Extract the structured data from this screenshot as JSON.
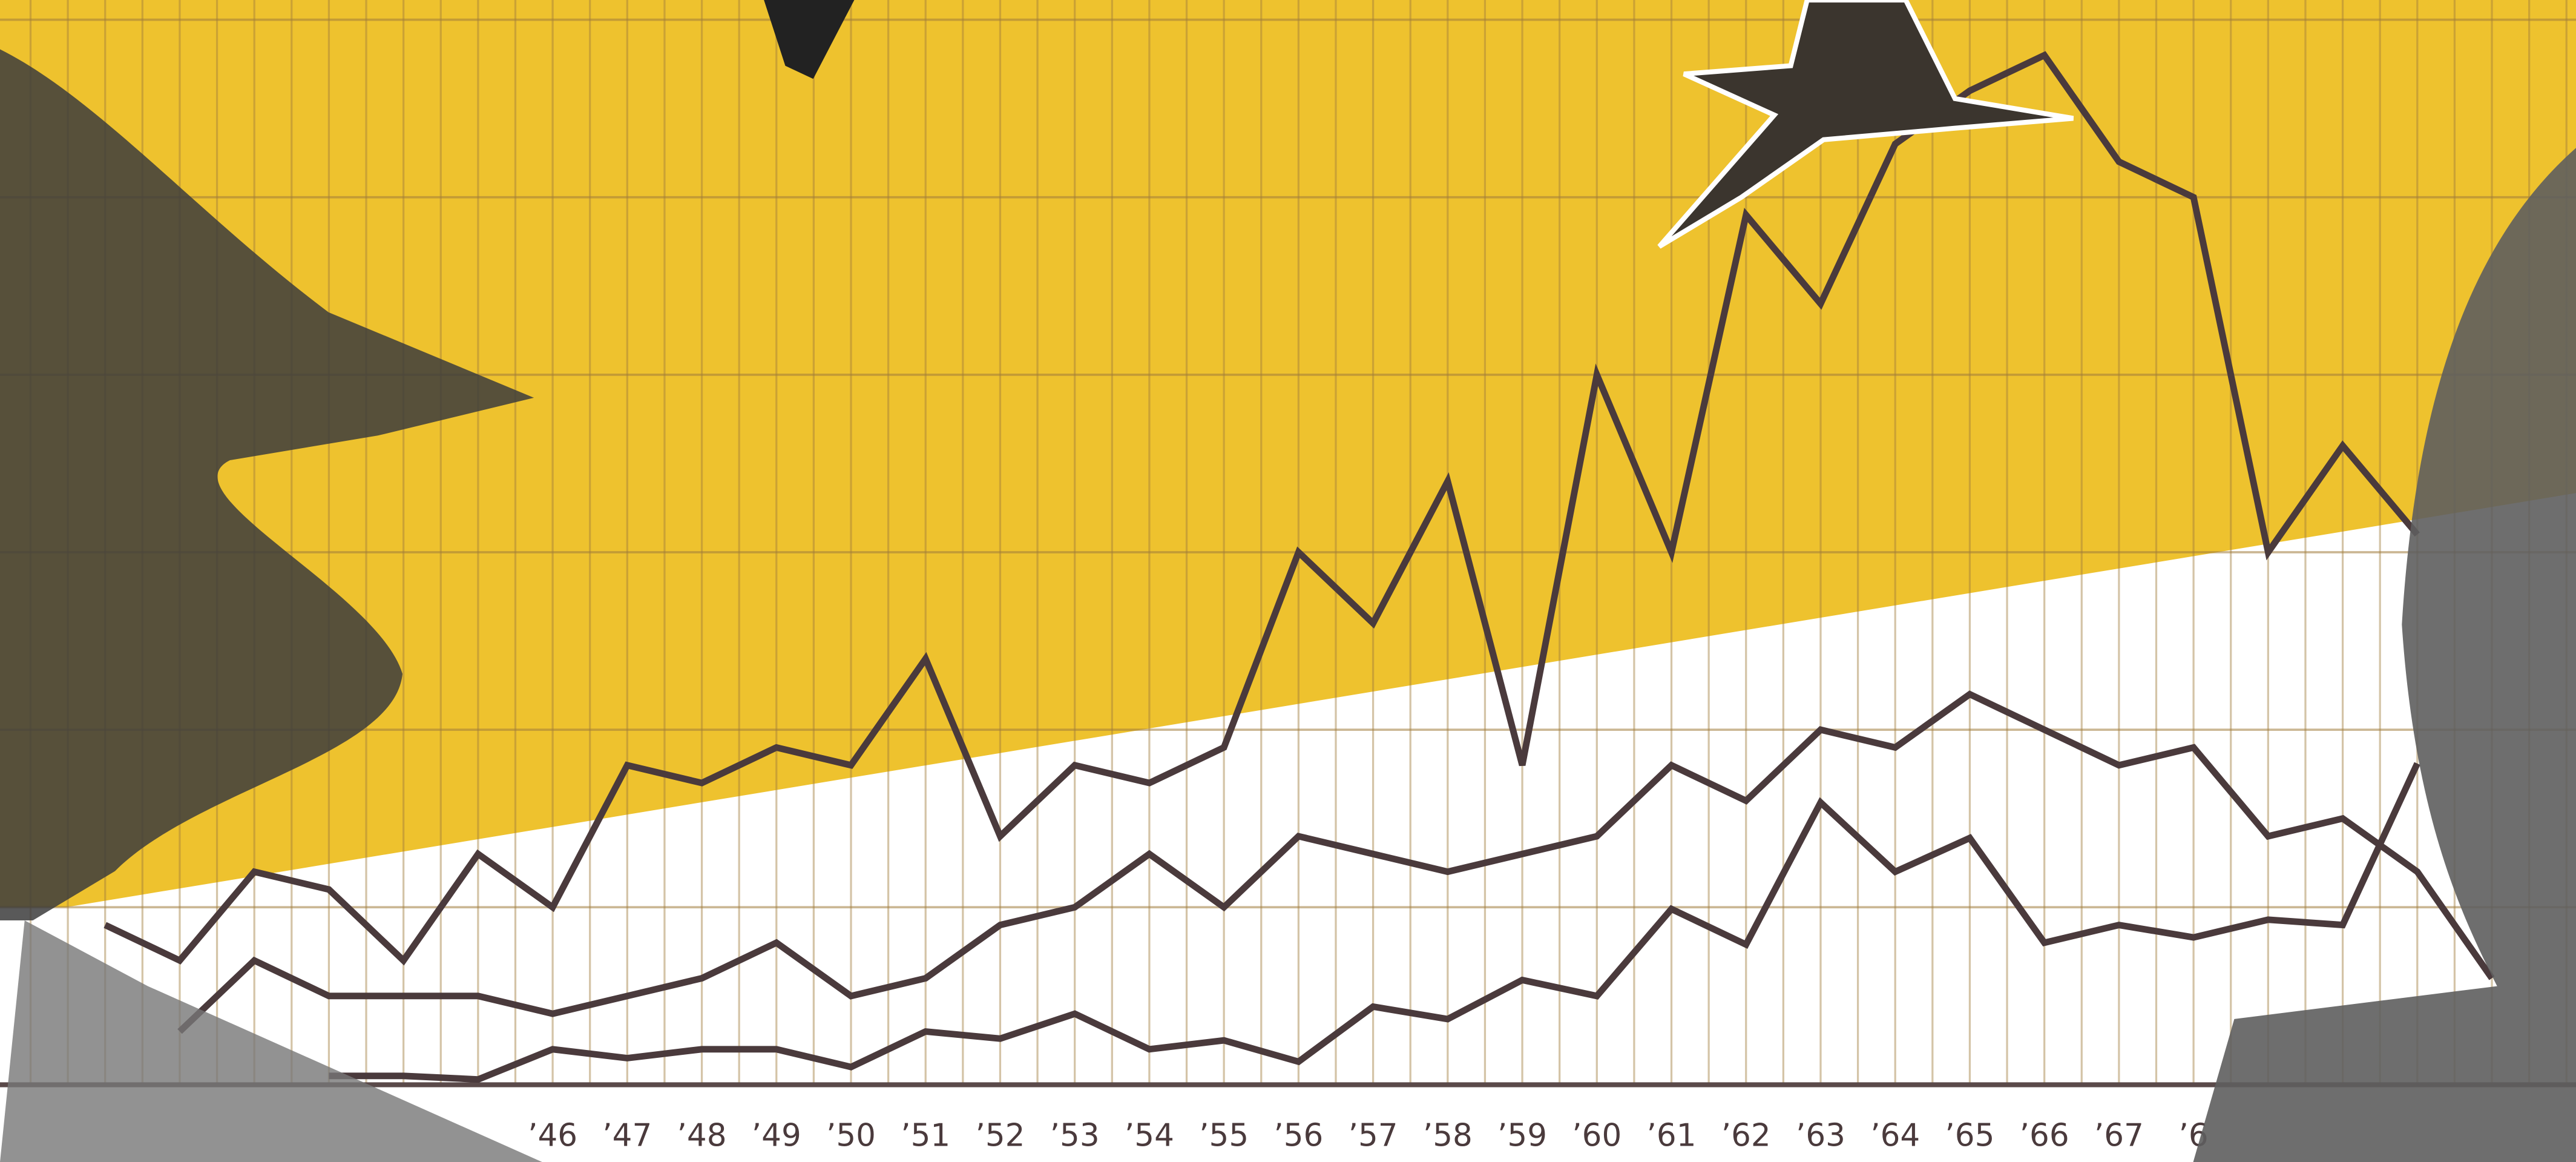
{
  "chart_data": {
    "type": "line",
    "categories": [
      null,
      null,
      null,
      null,
      null,
      null,
      "’46",
      "’47",
      "’48",
      "’49",
      "’50",
      "’51",
      "’52",
      "’53",
      "’54",
      "’55",
      "’56",
      "’57",
      "’58",
      "’59",
      "’60",
      "’61",
      "’62",
      "’63",
      "’64",
      "’65",
      "’66",
      "’67",
      "’6",
      null,
      null,
      null,
      null
    ],
    "series": [
      {
        "color": "#4a3a3c",
        "values": [
          0.9,
          0.7,
          1.2,
          1.1,
          0.7,
          1.3,
          1.0,
          1.8,
          1.7,
          1.9,
          1.8,
          2.4,
          1.4,
          1.8,
          1.7,
          1.9,
          3.0,
          2.6,
          3.4,
          1.8,
          4.0,
          3.0,
          4.9,
          4.4,
          5.3,
          5.6,
          5.8,
          5.2,
          5.0,
          3.0,
          3.6,
          3.1,
          null
        ]
      },
      {
        "color": "#4a3a3c",
        "values": [
          null,
          0.3,
          0.7,
          0.5,
          0.5,
          0.5,
          0.4,
          0.5,
          0.6,
          0.8,
          0.5,
          0.6,
          0.9,
          1.0,
          1.3,
          1.0,
          1.4,
          1.3,
          1.2,
          1.3,
          1.4,
          1.8,
          1.6,
          2.0,
          1.9,
          2.2,
          2.0,
          1.8,
          1.9,
          1.4,
          1.5,
          1.2,
          0.6
        ]
      },
      {
        "color": "#4a3a3c",
        "values": [
          null,
          null,
          null,
          0.05,
          0.05,
          0.03,
          0.2,
          0.15,
          0.2,
          0.2,
          0.1,
          0.3,
          0.26,
          0.4,
          0.2,
          0.25,
          0.13,
          0.44,
          0.37,
          0.59,
          0.5,
          0.99,
          0.79,
          1.59,
          1.2,
          1.39,
          0.8,
          0.9,
          0.83,
          0.93,
          0.9,
          1.81,
          null
        ]
      }
    ],
    "ylim": [
      0,
      6
    ],
    "yticks": [
      0,
      1,
      2,
      3,
      4,
      5,
      6
    ],
    "grid": true
  }
}
